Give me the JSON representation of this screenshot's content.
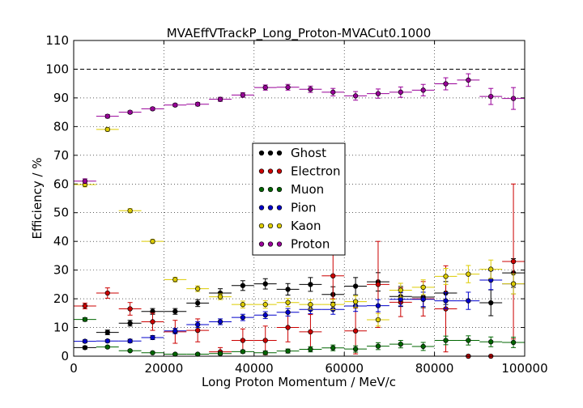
{
  "chart_data": {
    "type": "scatter",
    "title": "MVAEffVTrackP_Long_Proton-MVACut0.1000",
    "xlabel": "Long Proton Momentum / MeV/c",
    "ylabel": "Efficiency / %",
    "xlim": [
      0,
      100000
    ],
    "ylim": [
      0,
      110
    ],
    "xticks": [
      0,
      20000,
      40000,
      60000,
      80000,
      100000
    ],
    "xtick_labels": [
      "0",
      "20000",
      "40000",
      "60000",
      "80000",
      "100000"
    ],
    "yticks": [
      0,
      10,
      20,
      30,
      40,
      50,
      60,
      70,
      80,
      90,
      100,
      110
    ],
    "ytick_labels": [
      "0",
      "10",
      "20",
      "30",
      "40",
      "50",
      "60",
      "70",
      "80",
      "90",
      "100",
      "110"
    ],
    "grid": true,
    "reference_line_y": 100,
    "legend_position": "center",
    "bin_half_width": 2500,
    "x": [
      2500,
      7500,
      12500,
      17500,
      22500,
      27500,
      32500,
      37500,
      42500,
      47500,
      52500,
      57500,
      62500,
      67500,
      72500,
      77500,
      82500,
      87500,
      92500,
      97500
    ],
    "series": [
      {
        "name": "Ghost",
        "color": "#000000",
        "values": [
          3.0,
          8.3,
          11.5,
          15.6,
          15.6,
          18.5,
          22.0,
          24.6,
          25.2,
          23.3,
          25.0,
          21.5,
          24.4,
          25.9,
          20.8,
          20.6,
          22.0,
          0.0,
          18.6,
          29.0
        ],
        "errors": [
          0.5,
          0.8,
          1.0,
          1.0,
          1.0,
          1.2,
          1.5,
          1.7,
          1.8,
          2.0,
          2.4,
          2.7,
          3.0,
          3.2,
          3.5,
          3.7,
          4.0,
          0.0,
          4.5,
          5.0
        ]
      },
      {
        "name": "Electron",
        "color": "#cc0000",
        "values": [
          17.5,
          22.0,
          16.5,
          12.0,
          8.5,
          9.0,
          1.5,
          5.5,
          5.5,
          10.0,
          8.5,
          28.0,
          8.8,
          25.0,
          18.8,
          20.0,
          16.5,
          0.0,
          0.0,
          33.0
        ],
        "errors": [
          1.0,
          1.8,
          2.2,
          3.0,
          4.0,
          4.0,
          1.5,
          4.0,
          5.0,
          5.0,
          6.0,
          8.0,
          8.0,
          15.0,
          5.0,
          6.0,
          15.0,
          0.0,
          0.0,
          27.0
        ]
      },
      {
        "name": "Muon",
        "color": "#006600",
        "values": [
          12.8,
          3.2,
          1.9,
          1.2,
          0.7,
          0.7,
          0.9,
          1.6,
          1.2,
          1.8,
          2.4,
          2.9,
          2.5,
          3.5,
          4.2,
          3.4,
          5.5,
          5.5,
          5.0,
          4.8
        ],
        "errors": [
          0.6,
          0.4,
          0.3,
          0.3,
          0.3,
          0.3,
          0.4,
          0.5,
          0.6,
          0.7,
          0.9,
          1.0,
          1.1,
          1.2,
          1.3,
          1.4,
          1.5,
          1.6,
          1.7,
          1.8
        ]
      },
      {
        "name": "Pion",
        "color": "#0000cc",
        "values": [
          5.2,
          5.3,
          5.3,
          6.5,
          8.8,
          11.0,
          12.0,
          13.5,
          14.3,
          15.3,
          16.3,
          16.3,
          17.5,
          17.6,
          19.8,
          19.8,
          19.3,
          19.3,
          26.5,
          25.2
        ],
        "errors": [
          0.5,
          0.5,
          0.6,
          0.7,
          0.9,
          1.0,
          1.0,
          1.1,
          1.2,
          1.3,
          1.5,
          1.7,
          1.9,
          2.1,
          2.3,
          2.5,
          2.8,
          3.0,
          3.3,
          3.5
        ]
      },
      {
        "name": "Kaon",
        "color": "#ddcc00",
        "values": [
          59.8,
          79.0,
          50.7,
          40.0,
          26.7,
          23.5,
          20.7,
          18.0,
          18.0,
          18.7,
          18.0,
          18.0,
          19.0,
          12.7,
          23.0,
          24.0,
          27.8,
          28.6,
          30.3,
          25.2
        ],
        "errors": [
          0.8,
          0.6,
          0.7,
          0.7,
          0.8,
          1.0,
          1.0,
          1.2,
          1.3,
          1.4,
          1.6,
          1.8,
          2.0,
          2.2,
          2.4,
          2.6,
          2.8,
          3.0,
          3.2,
          3.5
        ]
      },
      {
        "name": "Proton",
        "color": "#990099",
        "values": [
          61.0,
          83.6,
          85.0,
          86.2,
          87.5,
          87.8,
          89.5,
          91.0,
          93.6,
          93.7,
          93.0,
          92.0,
          90.7,
          91.5,
          92.0,
          92.7,
          94.9,
          96.2,
          90.5,
          89.8
        ],
        "errors": [
          0.8,
          0.6,
          0.5,
          0.5,
          0.5,
          0.6,
          0.7,
          0.8,
          0.9,
          1.0,
          1.1,
          1.3,
          1.5,
          1.6,
          1.8,
          2.0,
          2.1,
          2.2,
          2.8,
          3.8
        ]
      }
    ]
  }
}
